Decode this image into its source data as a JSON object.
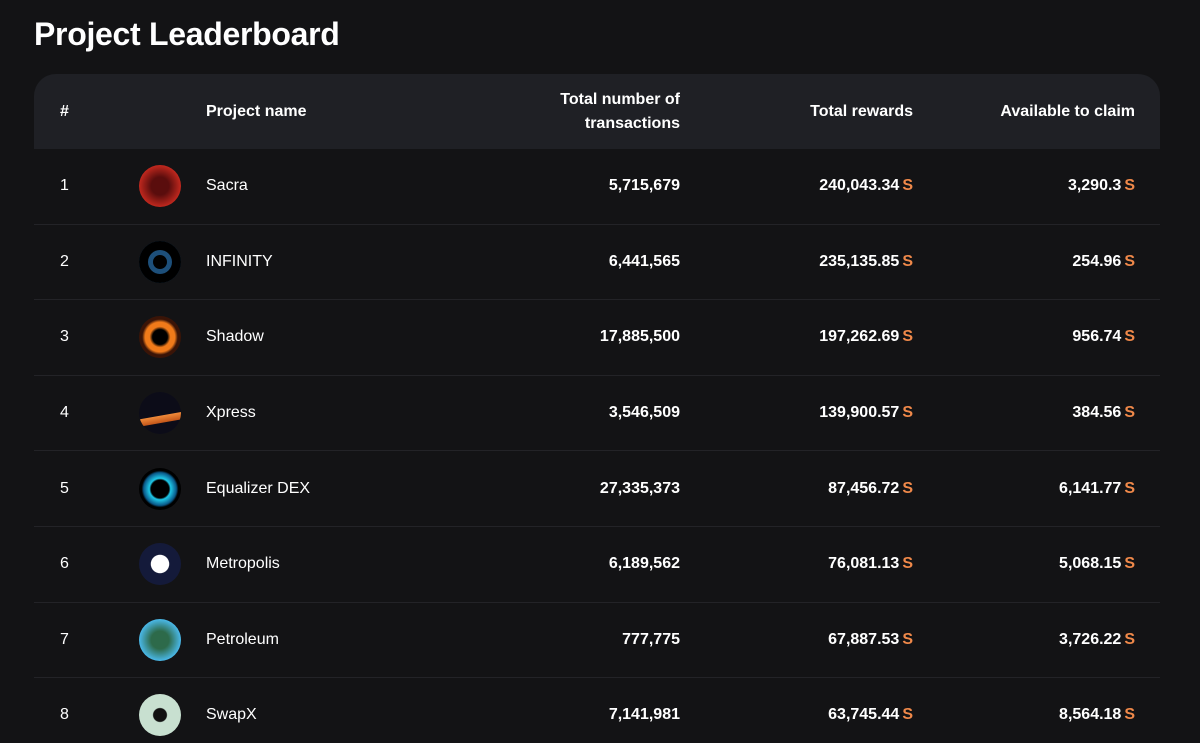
{
  "header": {
    "title": "Project Leaderboard"
  },
  "table": {
    "columns": [
      "#",
      "Project name",
      "Total number of transactions",
      "Total rewards",
      "Available to claim"
    ],
    "currency": "S",
    "rows": [
      [
        "1",
        "Sacra",
        "5,715,679",
        "240,043.34",
        "3,290.3"
      ],
      [
        "2",
        "INFINITY",
        "6,441,565",
        "235,135.85",
        "254.96"
      ],
      [
        "3",
        "Shadow",
        "17,885,500",
        "197,262.69",
        "956.74"
      ],
      [
        "4",
        "Xpress",
        "3,546,509",
        "139,900.57",
        "384.56"
      ],
      [
        "5",
        "Equalizer DEX",
        "27,335,373",
        "87,456.72",
        "6,141.77"
      ],
      [
        "6",
        "Metropolis",
        "6,189,562",
        "76,081.13",
        "5,068.15"
      ],
      [
        "7",
        "Petroleum",
        "777,775",
        "67,887.53",
        "3,726.22"
      ],
      [
        "8",
        "SwapX",
        "7,141,981",
        "63,745.44",
        "8,564.18"
      ]
    ]
  }
}
